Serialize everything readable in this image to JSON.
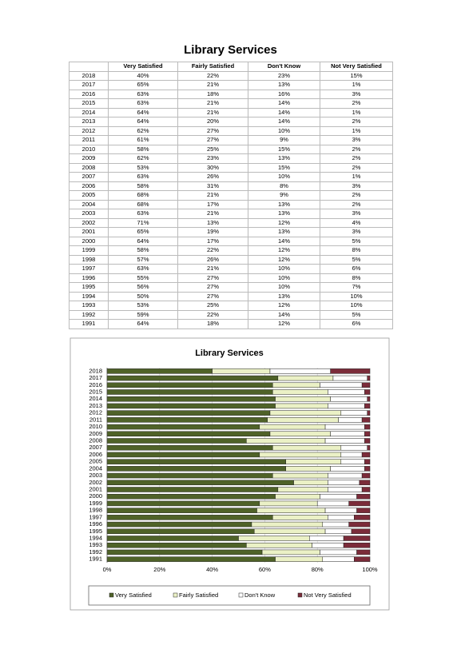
{
  "title": "Library Services",
  "table": {
    "columns": [
      "Very Satisfied",
      "Fairly Satisfied",
      "Don't Know",
      "Not Very Satisfied"
    ],
    "rows": [
      [
        "2018",
        "40%",
        "22%",
        "23%",
        "15%"
      ],
      [
        "2017",
        "65%",
        "21%",
        "13%",
        "1%"
      ],
      [
        "2016",
        "63%",
        "18%",
        "16%",
        "3%"
      ],
      [
        "2015",
        "63%",
        "21%",
        "14%",
        "2%"
      ],
      [
        "2014",
        "64%",
        "21%",
        "14%",
        "1%"
      ],
      [
        "2013",
        "64%",
        "20%",
        "14%",
        "2%"
      ],
      [
        "2012",
        "62%",
        "27%",
        "10%",
        "1%"
      ],
      [
        "2011",
        "61%",
        "27%",
        "9%",
        "3%"
      ],
      [
        "2010",
        "58%",
        "25%",
        "15%",
        "2%"
      ],
      [
        "2009",
        "62%",
        "23%",
        "13%",
        "2%"
      ],
      [
        "2008",
        "53%",
        "30%",
        "15%",
        "2%"
      ],
      [
        "2007",
        "63%",
        "26%",
        "10%",
        "1%"
      ],
      [
        "2006",
        "58%",
        "31%",
        "8%",
        "3%"
      ],
      [
        "2005",
        "68%",
        "21%",
        "9%",
        "2%"
      ],
      [
        "2004",
        "68%",
        "17%",
        "13%",
        "2%"
      ],
      [
        "2003",
        "63%",
        "21%",
        "13%",
        "3%"
      ],
      [
        "2002",
        "71%",
        "13%",
        "12%",
        "4%"
      ],
      [
        "2001",
        "65%",
        "19%",
        "13%",
        "3%"
      ],
      [
        "2000",
        "64%",
        "17%",
        "14%",
        "5%"
      ],
      [
        "1999",
        "58%",
        "22%",
        "12%",
        "8%"
      ],
      [
        "1998",
        "57%",
        "26%",
        "12%",
        "5%"
      ],
      [
        "1997",
        "63%",
        "21%",
        "10%",
        "6%"
      ],
      [
        "1996",
        "55%",
        "27%",
        "10%",
        "8%"
      ],
      [
        "1995",
        "56%",
        "27%",
        "10%",
        "7%"
      ],
      [
        "1994",
        "50%",
        "27%",
        "13%",
        "10%"
      ],
      [
        "1993",
        "53%",
        "25%",
        "12%",
        "10%"
      ],
      [
        "1992",
        "59%",
        "22%",
        "14%",
        "5%"
      ],
      [
        "1991",
        "64%",
        "18%",
        "12%",
        "6%"
      ]
    ]
  },
  "chart_data": {
    "type": "bar",
    "orientation": "horizontal",
    "stacked": true,
    "title": "Library Services",
    "categories": [
      "2018",
      "2017",
      "2016",
      "2015",
      "2014",
      "2013",
      "2012",
      "2011",
      "2010",
      "2009",
      "2008",
      "2007",
      "2006",
      "2005",
      "2004",
      "2003",
      "2002",
      "2001",
      "2000",
      "1999",
      "1998",
      "1997",
      "1996",
      "1995",
      "1994",
      "1993",
      "1992",
      "1991"
    ],
    "series": [
      {
        "name": "Very Satisfied",
        "color": "#4f6228",
        "values": [
          40,
          65,
          63,
          63,
          64,
          64,
          62,
          61,
          58,
          62,
          53,
          63,
          58,
          68,
          68,
          63,
          71,
          65,
          64,
          58,
          57,
          63,
          55,
          56,
          50,
          53,
          59,
          64
        ]
      },
      {
        "name": "Fairly Satisfied",
        "color": "#ebf1c6",
        "values": [
          22,
          21,
          18,
          21,
          21,
          20,
          27,
          27,
          25,
          23,
          30,
          26,
          31,
          21,
          17,
          21,
          13,
          19,
          17,
          22,
          26,
          21,
          27,
          27,
          27,
          25,
          22,
          18
        ]
      },
      {
        "name": "Don't Know",
        "color": "#ffffff",
        "values": [
          23,
          13,
          16,
          14,
          14,
          14,
          10,
          9,
          15,
          13,
          15,
          10,
          8,
          9,
          13,
          13,
          12,
          13,
          14,
          12,
          12,
          10,
          10,
          10,
          13,
          12,
          14,
          12
        ]
      },
      {
        "name": "Not Very Satisfied",
        "color": "#7b2c3a",
        "values": [
          15,
          1,
          3,
          2,
          1,
          2,
          1,
          3,
          2,
          2,
          2,
          1,
          3,
          2,
          2,
          3,
          4,
          3,
          5,
          8,
          5,
          6,
          8,
          7,
          10,
          10,
          5,
          6
        ]
      }
    ],
    "xlim": [
      0,
      100
    ],
    "xticks": [
      {
        "value": 0,
        "label": "0%"
      },
      {
        "value": 20,
        "label": "20%"
      },
      {
        "value": 40,
        "label": "40%"
      },
      {
        "value": 60,
        "label": "60%"
      },
      {
        "value": 80,
        "label": "80%"
      },
      {
        "value": 100,
        "label": "100%"
      }
    ],
    "grid": true
  }
}
